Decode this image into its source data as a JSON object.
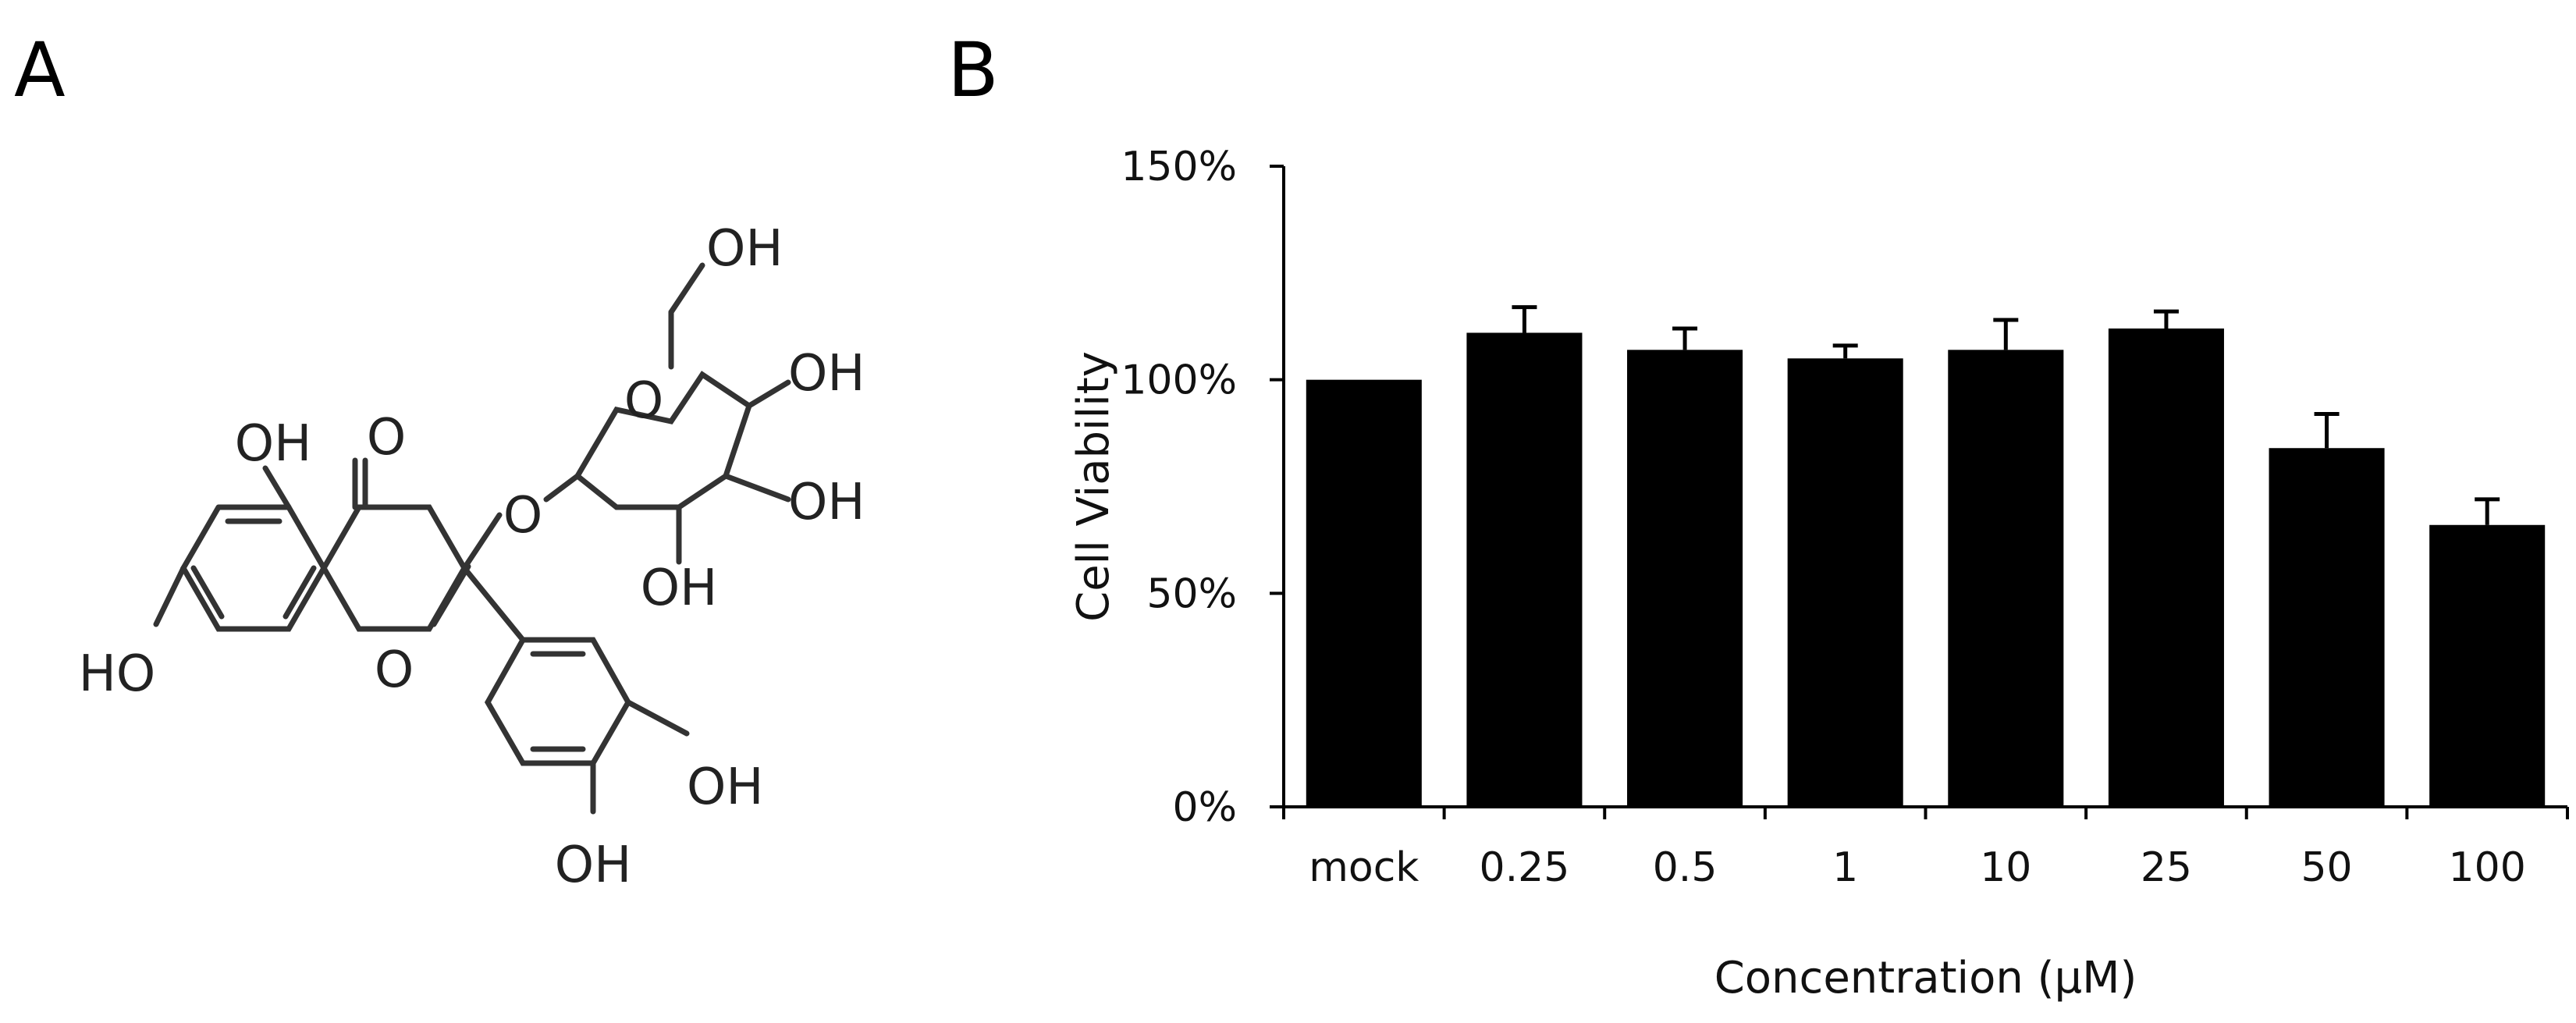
{
  "panels": {
    "a_label": "A",
    "b_label": "B"
  },
  "molecule": {
    "labels": [
      "OH",
      "OH",
      "OH",
      "OH",
      "O",
      "O",
      "O",
      "OH",
      "HO",
      "O",
      "OH",
      "OH"
    ]
  },
  "chart_data": {
    "type": "bar",
    "categories": [
      "mock",
      "0.25",
      "0.5",
      "1",
      "10",
      "25",
      "50",
      "100"
    ],
    "values": [
      100,
      111,
      107,
      105,
      107,
      112,
      84,
      66
    ],
    "errors": [
      0,
      6,
      5,
      3,
      7,
      4,
      8,
      6
    ],
    "ylabel": "Cell Viability",
    "xlabel": "Concentration (μM)",
    "ylim": [
      0,
      150
    ],
    "yticks": [
      0,
      50,
      100,
      150
    ],
    "ytick_labels": [
      "0%",
      "50%",
      "100%",
      "150%"
    ],
    "grid": false,
    "bar_color": "#000000"
  }
}
